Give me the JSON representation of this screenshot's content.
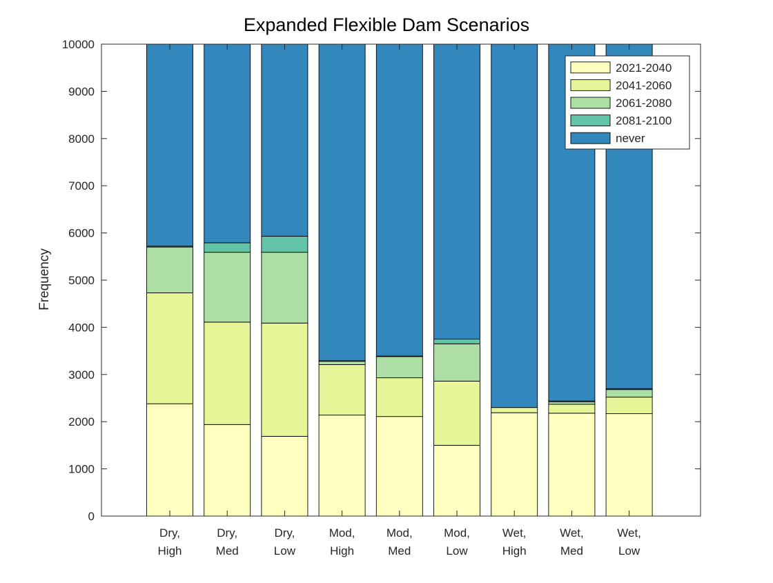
{
  "chart_data": {
    "type": "bar",
    "stacked": true,
    "title": "Expanded Flexible Dam Scenarios",
    "xlabel": "",
    "ylabel": "Frequency",
    "ylim": [
      0,
      10000
    ],
    "yticks": [
      0,
      1000,
      2000,
      3000,
      4000,
      5000,
      6000,
      7000,
      8000,
      9000,
      10000
    ],
    "grid": false,
    "legend_position": "top-right",
    "categories": [
      [
        "Dry,",
        "High"
      ],
      [
        "Dry,",
        "Med"
      ],
      [
        "Dry,",
        "Low"
      ],
      [
        "Mod,",
        "High"
      ],
      [
        "Mod,",
        "Med"
      ],
      [
        "Mod,",
        "Low"
      ],
      [
        "Wet,",
        "High"
      ],
      [
        "Wet,",
        "Med"
      ],
      [
        "Wet,",
        "Low"
      ]
    ],
    "series": [
      {
        "name": "2021-2040",
        "color": "#ffffc0",
        "values": [
          2380,
          1940,
          1690,
          2140,
          2110,
          1500,
          2190,
          2180,
          2170
        ]
      },
      {
        "name": "2041-2060",
        "color": "#e6f598",
        "values": [
          2350,
          2170,
          2400,
          1070,
          820,
          1360,
          110,
          190,
          350
        ]
      },
      {
        "name": "2061-2080",
        "color": "#addea3",
        "values": [
          970,
          1480,
          1500,
          70,
          450,
          790,
          0,
          50,
          160
        ]
      },
      {
        "name": "2081-2100",
        "color": "#63c3a6",
        "values": [
          20,
          200,
          340,
          10,
          10,
          100,
          0,
          20,
          20
        ]
      },
      {
        "name": "never",
        "color": "#3288bd",
        "values": [
          4280,
          4210,
          4070,
          6710,
          6610,
          6250,
          7700,
          7560,
          7300
        ]
      }
    ]
  }
}
